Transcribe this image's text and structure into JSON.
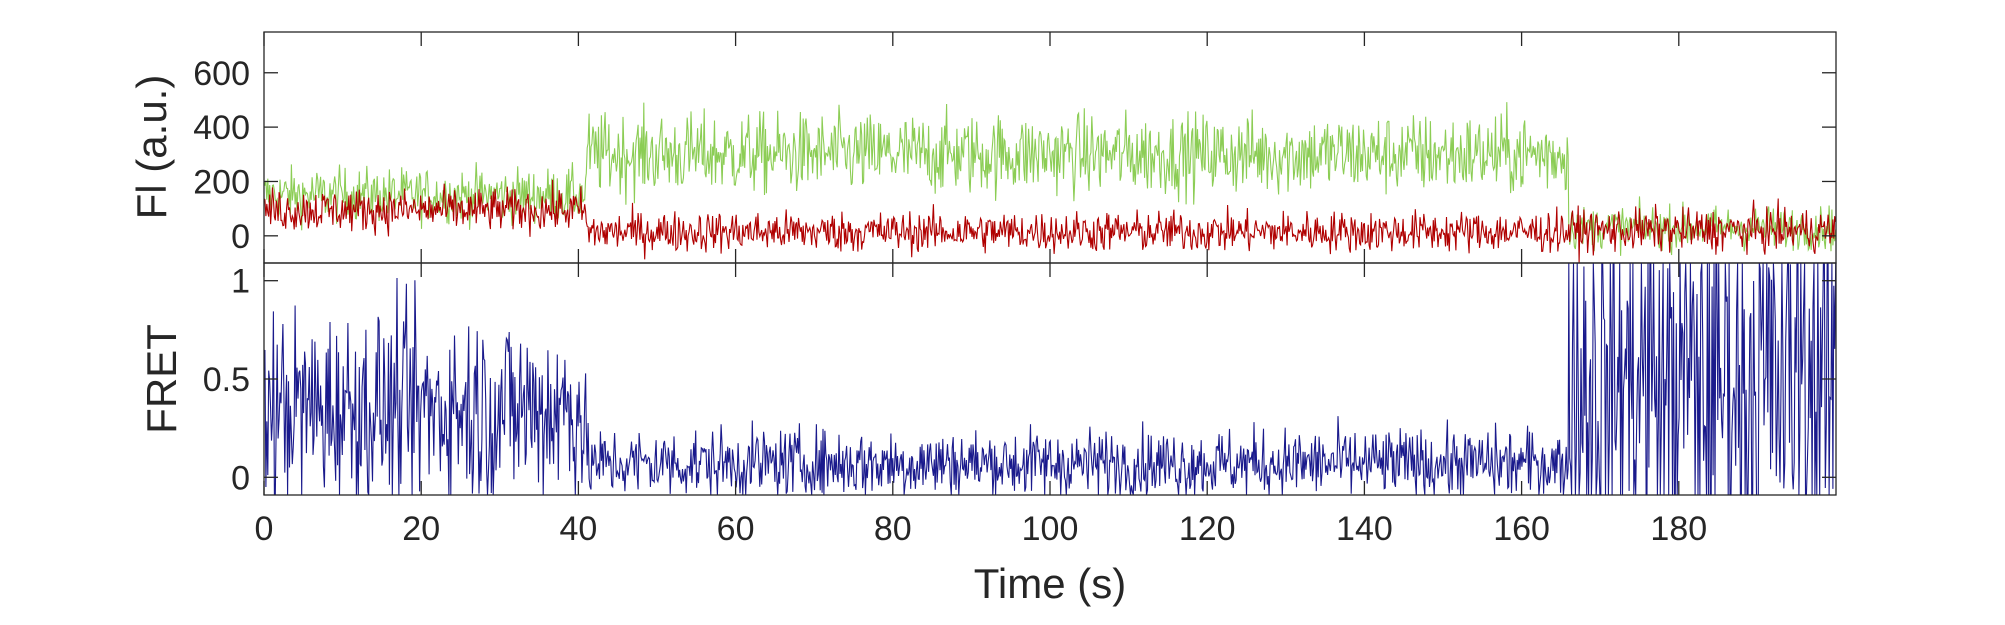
{
  "chart_data": [
    {
      "type": "line",
      "panel": "top",
      "ylabel": "Fl (a.u.)",
      "xlim": [
        0,
        200
      ],
      "ylim": [
        -100,
        750
      ],
      "yticks": [
        0,
        200,
        400,
        600
      ],
      "grid": false,
      "colors": {
        "green": "#8ccd55",
        "red": "#b00000"
      },
      "series": [
        {
          "color": "#8ccd55",
          "segments": [
            {
              "x": [
                0,
                41
              ],
              "mean": 150,
              "noise": 50
            },
            {
              "x": [
                41,
                166
              ],
              "mean": 300,
              "noise": 75
            },
            {
              "x": [
                166,
                200
              ],
              "mean": 30,
              "noise": 40
            }
          ]
        },
        {
          "color": "#b00000",
          "segments": [
            {
              "x": [
                0,
                41
              ],
              "mean": 95,
              "noise": 40
            },
            {
              "x": [
                41,
                166
              ],
              "mean": 15,
              "noise": 38
            },
            {
              "x": [
                166,
                200
              ],
              "mean": 20,
              "noise": 40
            }
          ]
        }
      ]
    },
    {
      "type": "line",
      "panel": "bottom",
      "ylabel": "FRET",
      "xlabel": "Time (s)",
      "xlim": [
        0,
        200
      ],
      "ylim": [
        -0.09,
        1.09
      ],
      "yticks": [
        0,
        0.5,
        1
      ],
      "xticks": [
        0,
        20,
        40,
        60,
        80,
        100,
        120,
        140,
        160,
        180
      ],
      "grid": false,
      "series": [
        {
          "color": "#1a1a8c",
          "segments": [
            {
              "x": [
                0,
                41
              ],
              "mean": 0.35,
              "noise": 0.25
            },
            {
              "x": [
                41,
                166
              ],
              "mean": 0.07,
              "noise": 0.09
            },
            {
              "x": [
                166,
                200
              ],
              "mean": 0.5,
              "noise": 0.55
            }
          ]
        }
      ]
    }
  ]
}
